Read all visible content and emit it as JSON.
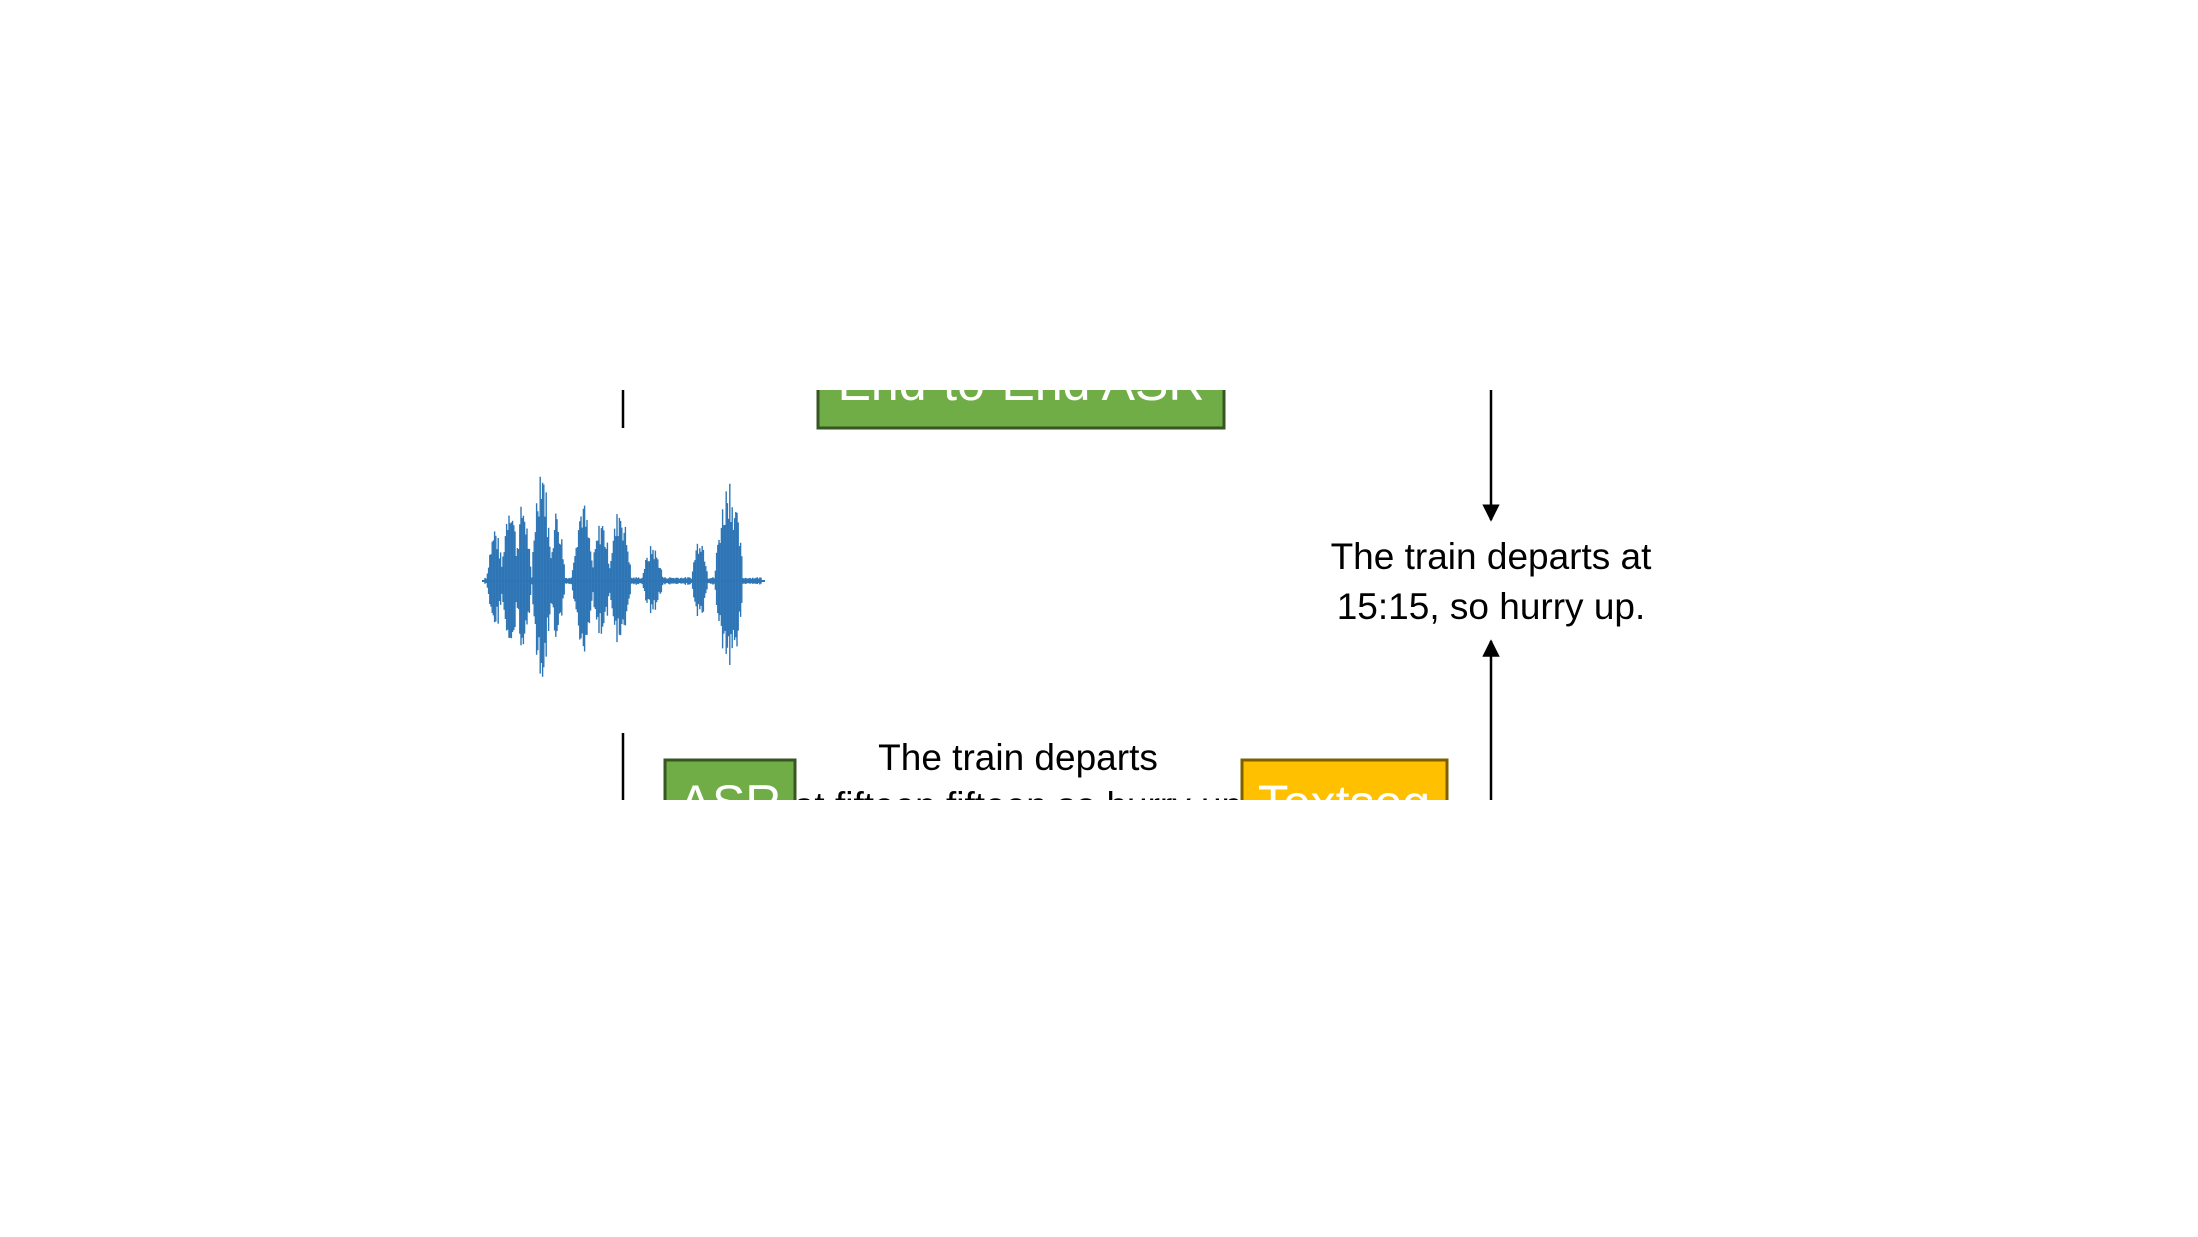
{
  "diagram": {
    "top_box": {
      "label": "End-to-End ASR"
    },
    "asr_box": {
      "label": "ASR"
    },
    "textseg_box": {
      "label": "Textseg"
    },
    "intermediate_text": {
      "line1": "The train departs",
      "line2": "at fifteen fifteen so hurry up"
    },
    "output_text": {
      "line1": "The train departs at",
      "line2": "15:15, so hurry up."
    },
    "colors": {
      "green_box_fill": "#70ad47",
      "green_box_border": "#375623",
      "yellow_box_fill": "#ffc000",
      "yellow_box_border": "#7f6000",
      "waveform": "#2e75b6",
      "arrow": "#000000"
    },
    "icons": [
      "audio-waveform-icon"
    ]
  }
}
